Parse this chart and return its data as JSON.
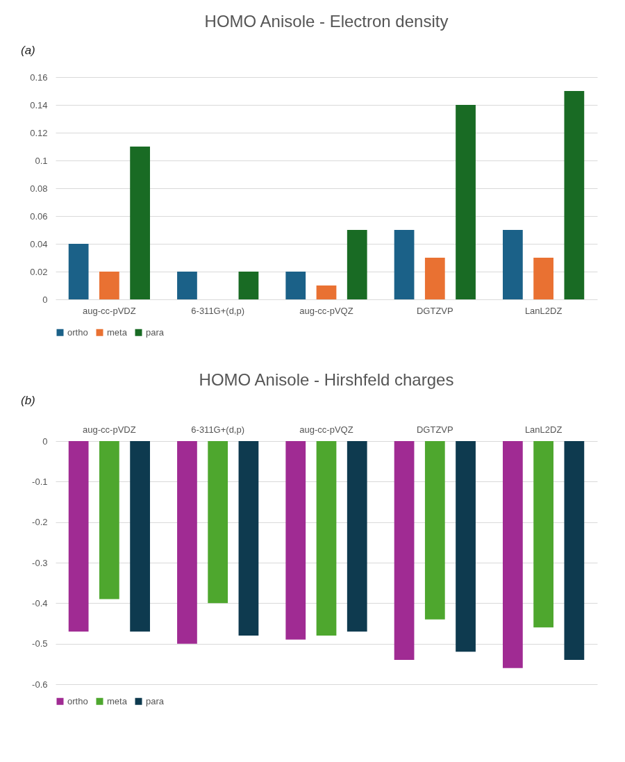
{
  "chart_data": [
    {
      "type": "bar",
      "title": "HOMO Anisole - Electron density",
      "annotations": [
        "(a)"
      ],
      "categories": [
        "aug-cc-pVDZ",
        "6-311G+(d,p)",
        "aug-cc-pVQZ",
        "DGTZVP",
        "LanL2DZ"
      ],
      "series": [
        {
          "name": "ortho",
          "color": "#1b6188",
          "values": [
            0.04,
            0.02,
            0.02,
            0.05,
            0.05
          ]
        },
        {
          "name": "meta",
          "color": "#e97132",
          "values": [
            0.02,
            0,
            0.01,
            0.03,
            0.03
          ]
        },
        {
          "name": "para",
          "color": "#196b24",
          "values": [
            0.11,
            0.02,
            0.05,
            0.14,
            0.15
          ]
        }
      ],
      "ylim": [
        0,
        0.16
      ],
      "yticks": [
        0,
        0.02,
        0.04,
        0.06,
        0.08,
        0.1,
        0.12,
        0.14,
        0.16
      ],
      "grid": "y",
      "legend": "bottom"
    },
    {
      "type": "bar",
      "title": "HOMO Anisole - Hirshfeld charges",
      "annotations": [
        "(b)"
      ],
      "categories": [
        "aug-cc-pVDZ",
        "6-311G+(d,p)",
        "aug-cc-pVQZ",
        "DGTZVP",
        "LanL2DZ"
      ],
      "series": [
        {
          "name": "ortho",
          "color": "#a02b93",
          "values": [
            -0.47,
            -0.5,
            -0.49,
            -0.54,
            -0.56
          ]
        },
        {
          "name": "meta",
          "color": "#4ea72e",
          "values": [
            -0.39,
            -0.4,
            -0.48,
            -0.44,
            -0.46
          ]
        },
        {
          "name": "para",
          "color": "#0e3a4f",
          "values": [
            -0.47,
            -0.48,
            -0.47,
            -0.52,
            -0.54
          ]
        }
      ],
      "ylim": [
        -0.6,
        0
      ],
      "yticks": [
        0,
        -0.1,
        -0.2,
        -0.3,
        -0.4,
        -0.5,
        -0.6
      ],
      "grid": "y",
      "legend": "bottom"
    }
  ]
}
